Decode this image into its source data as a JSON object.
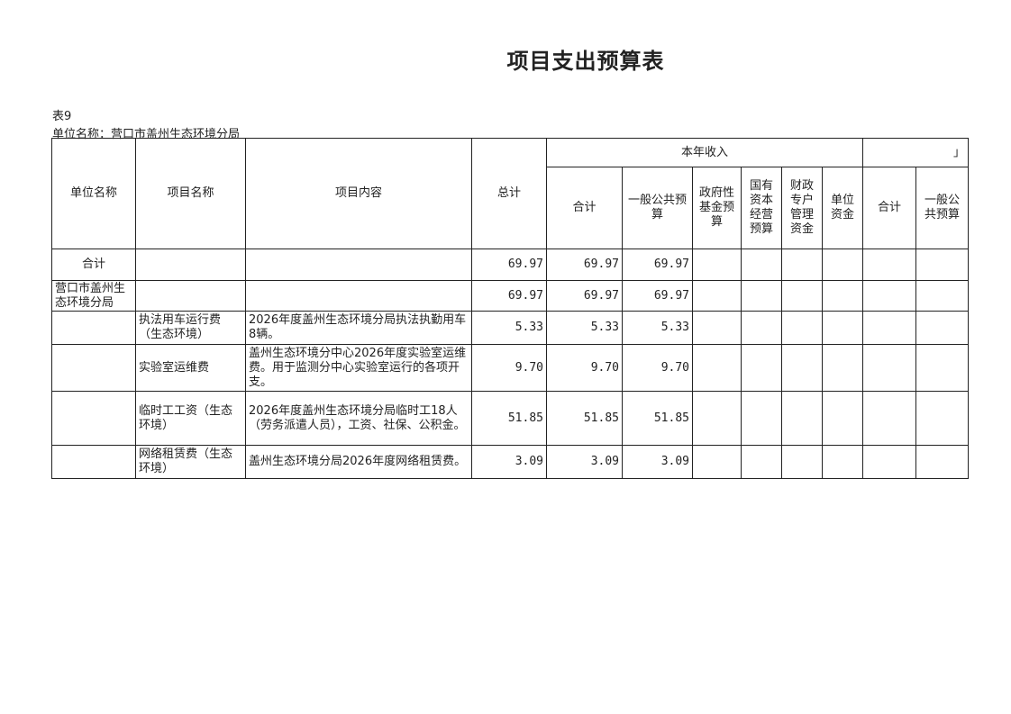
{
  "title": "项目支出预算表",
  "table_no": "表9",
  "unit_label": "单位名称：营口市盖州生态环境分局",
  "headers": {
    "unit_name": "单位名称",
    "project_name": "项目名称",
    "project_content": "项目内容",
    "total": "总计",
    "current_income": "本年收入",
    "overflow_mark": "」",
    "sub": [
      "合计",
      "一般公共预算",
      "政府性基金预算",
      "国有资本经营预算",
      "财政专户管理资金",
      "单位资金",
      "合计",
      "一般公共预算"
    ]
  },
  "rows": [
    {
      "unit": "合计",
      "name": "",
      "content": "",
      "total": "69.97",
      "sum": "69.97",
      "general": "69.97"
    },
    {
      "unit": "营口市盖州生态环境分局",
      "name": "",
      "content": "",
      "total": "69.97",
      "sum": "69.97",
      "general": "69.97"
    },
    {
      "unit": "",
      "name": "执法用车运行费（生态环境）",
      "content": "2026年度盖州生态环境分局执法执勤用车8辆。",
      "total": "5.33",
      "sum": "5.33",
      "general": "5.33"
    },
    {
      "unit": "",
      "name": "实验室运维费",
      "content": "盖州生态环境分中心2026年度实验室运维费。用于监测分中心实验室运行的各项开支。",
      "total": "9.70",
      "sum": "9.70",
      "general": "9.70"
    },
    {
      "unit": "",
      "name": "临时工工资（生态环境）",
      "content": "2026年度盖州生态环境分局临时工18人（劳务派遣人员），工资、社保、公积金。",
      "total": "51.85",
      "sum": "51.85",
      "general": "51.85"
    },
    {
      "unit": "",
      "name": "网络租赁费（生态环境）",
      "content": "盖州生态环境分局2026年度网络租赁费。",
      "total": "3.09",
      "sum": "3.09",
      "general": "3.09"
    }
  ]
}
